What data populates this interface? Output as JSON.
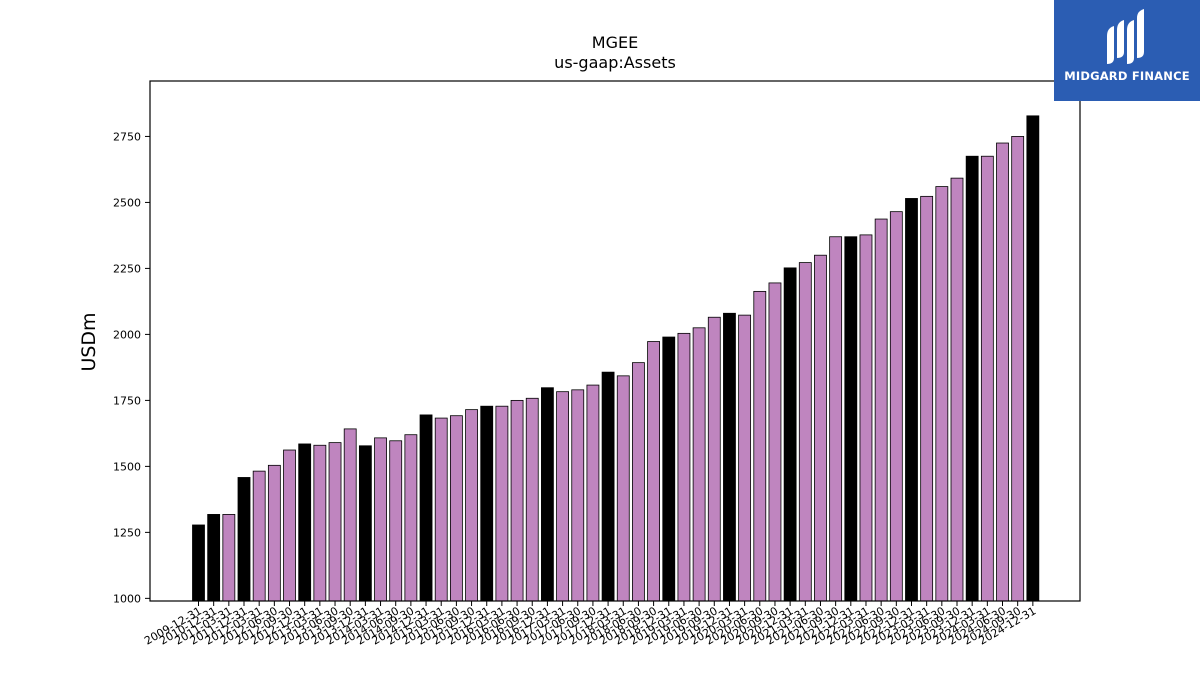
{
  "chart_data": {
    "type": "bar",
    "title": "MGEE",
    "subtitle": "us-gaap:Assets",
    "xlabel": "",
    "ylabel": "USDm",
    "ylim": [
      990,
      2960
    ],
    "yticks": [
      1000,
      1250,
      1500,
      1750,
      2000,
      2250,
      2500,
      2750
    ],
    "grid": false,
    "colors": {
      "annual": "#000000",
      "quarterly": "#bf85bf",
      "edge": "#000000"
    },
    "categories": [
      "2009-12-31",
      "2010-12-31",
      "2011-03-31",
      "2011-12-31",
      "2012-03-31",
      "2012-06-30",
      "2012-09-30",
      "2012-12-31",
      "2013-03-31",
      "2013-06-30",
      "2013-09-30",
      "2013-12-31",
      "2014-03-31",
      "2014-06-30",
      "2014-09-30",
      "2014-12-31",
      "2015-03-31",
      "2015-06-30",
      "2015-09-30",
      "2015-12-31",
      "2016-03-31",
      "2016-06-30",
      "2016-09-30",
      "2016-12-31",
      "2017-03-31",
      "2017-06-30",
      "2017-09-30",
      "2017-12-31",
      "2018-03-31",
      "2018-06-30",
      "2018-09-30",
      "2018-12-31",
      "2019-03-31",
      "2019-06-30",
      "2019-09-30",
      "2019-12-31",
      "2020-03-31",
      "2020-06-30",
      "2020-09-30",
      "2020-12-31",
      "2021-03-31",
      "2021-06-30",
      "2021-09-30",
      "2021-12-31",
      "2022-03-31",
      "2022-06-30",
      "2022-09-30",
      "2022-12-31",
      "2023-03-31",
      "2023-06-30",
      "2023-09-30",
      "2023-12-31",
      "2024-03-31",
      "2024-06-30",
      "2024-09-30",
      "2024-12-31"
    ],
    "values": [
      1278,
      1318,
      1318,
      1458,
      1482,
      1504,
      1562,
      1585,
      1580,
      1590,
      1642,
      1578,
      1608,
      1597,
      1620,
      1695,
      1683,
      1692,
      1715,
      1728,
      1728,
      1750,
      1758,
      1798,
      1783,
      1790,
      1808,
      1857,
      1843,
      1893,
      1973,
      1990,
      2004,
      2025,
      2065,
      2080,
      2073,
      2163,
      2195,
      2252,
      2272,
      2300,
      2370,
      2370,
      2377,
      2437,
      2465,
      2515,
      2523,
      2560,
      2592,
      2675,
      2675,
      2725,
      2750,
      2828
    ],
    "annual": [
      true,
      true,
      false,
      true,
      false,
      false,
      false,
      true,
      false,
      false,
      false,
      true,
      false,
      false,
      false,
      true,
      false,
      false,
      false,
      true,
      false,
      false,
      false,
      true,
      false,
      false,
      false,
      true,
      false,
      false,
      false,
      true,
      false,
      false,
      false,
      true,
      false,
      false,
      false,
      true,
      false,
      false,
      false,
      true,
      false,
      false,
      false,
      true,
      false,
      false,
      false,
      true,
      false,
      false,
      false,
      true
    ]
  },
  "logo": {
    "text": "MIDGARD FINANCE"
  }
}
